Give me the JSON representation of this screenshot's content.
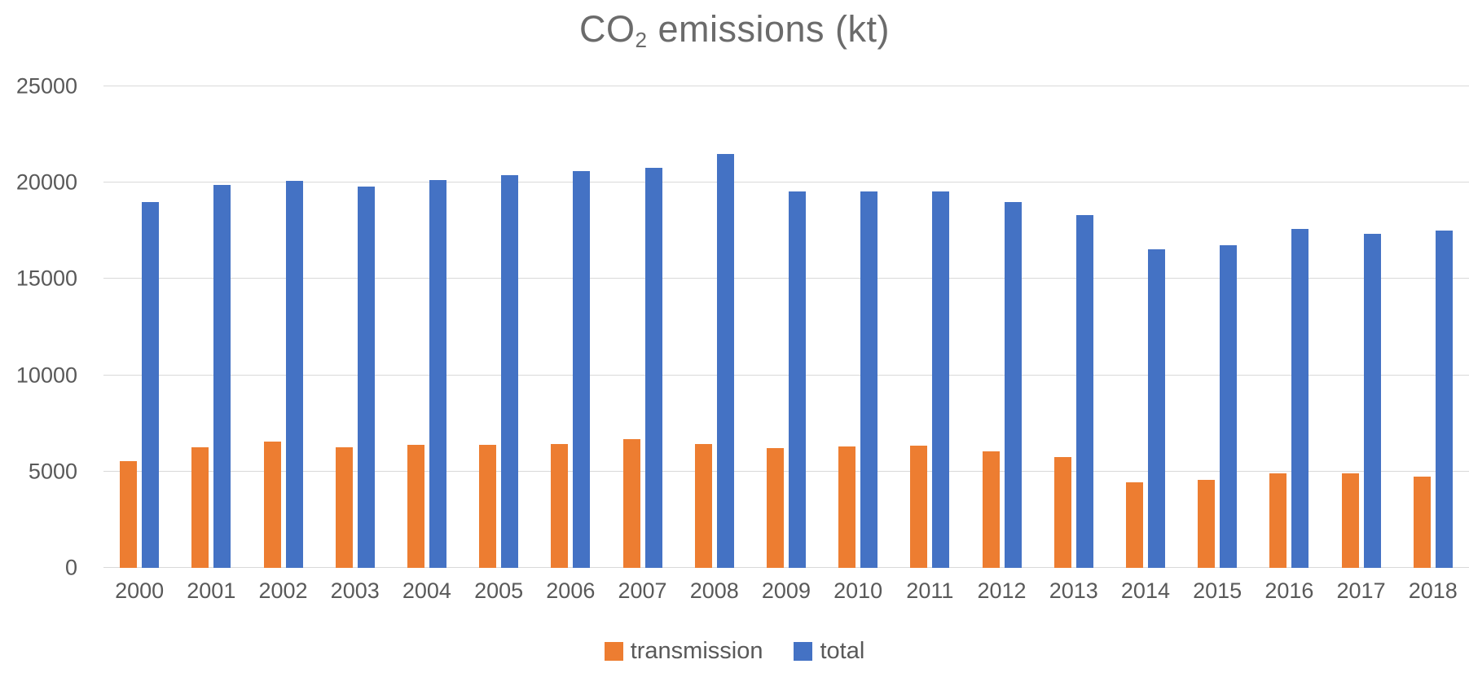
{
  "chart_data": {
    "type": "bar",
    "title": "CO₂ emissions (kt)",
    "title_parts": {
      "main": "CO",
      "sub": "2",
      "rest": " emissions (kt)"
    },
    "categories": [
      "2000",
      "2001",
      "2002",
      "2003",
      "2004",
      "2005",
      "2006",
      "2007",
      "2008",
      "2009",
      "2010",
      "2011",
      "2012",
      "2013",
      "2014",
      "2015",
      "2016",
      "2017",
      "2018"
    ],
    "series": [
      {
        "name": "transmission",
        "color": "#ED7D31",
        "values": [
          5550,
          6250,
          6550,
          6250,
          6400,
          6400,
          6450,
          6700,
          6450,
          6200,
          6300,
          6350,
          6050,
          5750,
          4450,
          4550,
          4900,
          4900,
          4750
        ]
      },
      {
        "name": "total",
        "color": "#4472C4",
        "values": [
          19000,
          19900,
          20100,
          19800,
          20150,
          20400,
          20600,
          20750,
          21500,
          19550,
          19550,
          19550,
          19000,
          18300,
          16550,
          16750,
          17600,
          17350,
          17500
        ]
      }
    ],
    "xlabel": "",
    "ylabel": "",
    "ylim": [
      0,
      25000
    ],
    "yticks": [
      0,
      5000,
      10000,
      15000,
      20000,
      25000
    ],
    "grid": true,
    "legend_position": "bottom"
  },
  "colors": {
    "gridline": "#D9D9D9",
    "axis_text": "#595959",
    "title_text": "#6b6b6b",
    "background": "#FFFFFF"
  }
}
